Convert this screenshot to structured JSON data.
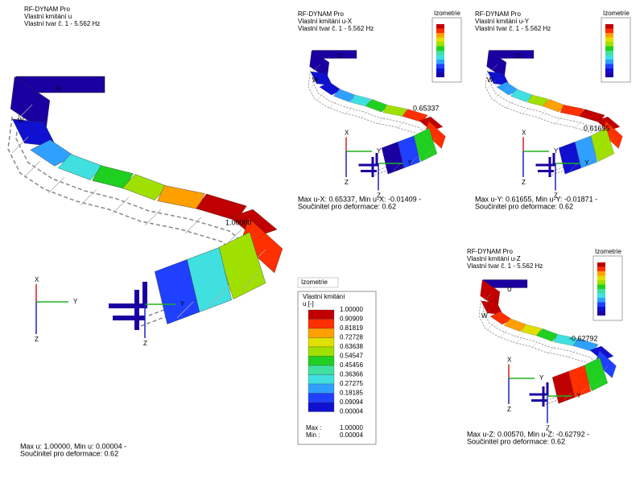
{
  "panels": [
    {
      "header": [
        "RF-DYNAM Pro",
        "Vlastní kmitání u",
        "Vlastní tvar č. 1 - 5.562 Hz"
      ],
      "value_label": "1.00000",
      "footer": [
        "Max u: 1.00000, Min u: 0.00004 -",
        "Součinitel pro deformace: 0.62"
      ],
      "global_axes": [
        "X",
        "Y",
        "Z"
      ],
      "local_axes": [
        "Y",
        "Z"
      ],
      "support_labels": [
        "W",
        "U"
      ]
    },
    {
      "header": [
        "RF-DYNAM Pro",
        "Vlastní kmitání u-X",
        "Vlastní tvar č. 1 - 5.562 Hz"
      ],
      "value_label": "0.65337",
      "footer": [
        "Max u-X: 0.65337, Min u-X: -0.01409 -",
        "Součinitel pro deformace: 0.62"
      ],
      "global_axes": [
        "X",
        "Y",
        "Z"
      ],
      "local_axes": [
        "Y",
        "Z"
      ],
      "support_labels": [
        "W",
        "U"
      ],
      "legend_title": "Izometrie"
    },
    {
      "header": [
        "RF-DYNAM Pro",
        "Vlastní kmitání u-Y",
        "Vlastní tvar č. 1 - 5.562 Hz"
      ],
      "value_label": "0.61655",
      "footer": [
        "Max u-Y: 0.61655, Min u-Y: -0.01871 -",
        "Součinitel pro deformace: 0.62"
      ],
      "global_axes": [
        "X",
        "Y",
        "Z"
      ],
      "local_axes": [
        "Y",
        "Z"
      ],
      "support_labels": [
        "W",
        "U"
      ],
      "legend_title": "Izometrie"
    },
    {
      "header": [
        "RF-DYNAM Pro",
        "Vlastní kmitání u-Z",
        "Vlastní tvar č. 1 - 5.562 Hz"
      ],
      "value_label": "-0.62792",
      "footer": [
        "Max u-Z: 0.00570, Min u-Z: -0.62792 -",
        "Součinitel pro deformace: 0.62"
      ],
      "global_axes": [
        "X",
        "Y",
        "Z"
      ],
      "local_axes": [
        "Y",
        "Z"
      ],
      "support_labels": [
        "W",
        "U"
      ],
      "legend_title": "Izometrie"
    }
  ],
  "legend": {
    "title": "Izometrie",
    "heading": [
      "Vlastní kmitání",
      "u [-]"
    ],
    "values": [
      "1.00000",
      "0.90909",
      "0.81819",
      "0.72728",
      "0.63638",
      "0.54547",
      "0.45456",
      "0.36366",
      "0.27275",
      "0.18185",
      "0.09094",
      "0.00004"
    ],
    "max_label": "Max :",
    "max_value": "1.00000",
    "min_label": "Min :",
    "min_value": "0.00004"
  }
}
